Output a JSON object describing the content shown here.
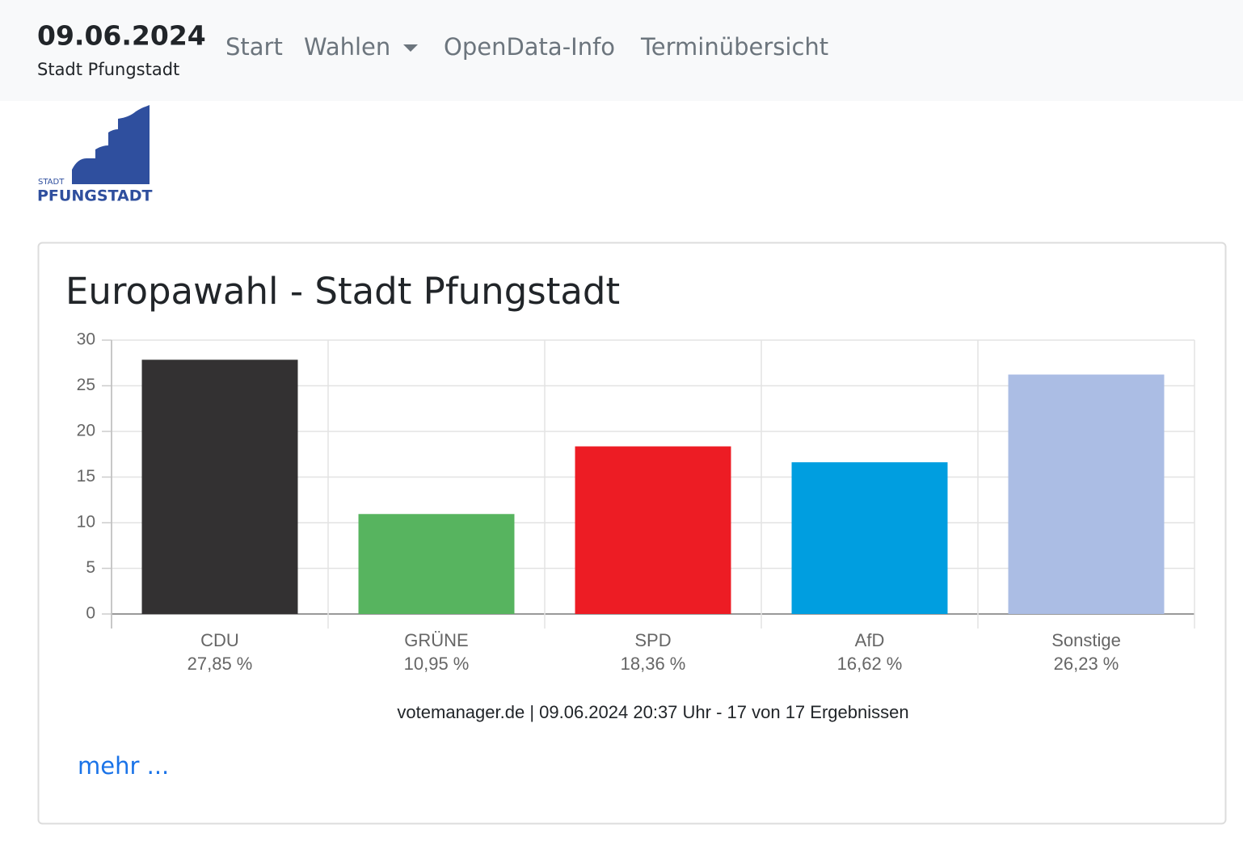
{
  "header": {
    "date": "09.06.2024",
    "subtitle": "Stadt Pfungstadt",
    "nav": [
      "Start",
      "Wahlen",
      "OpenData-Info",
      "Terminübersicht"
    ]
  },
  "logo": {
    "small": "STADT",
    "name": "PFUNGSTADT"
  },
  "chart_data": {
    "type": "bar",
    "title": "Europawahl - Stadt Pfungstadt",
    "categories": [
      "CDU",
      "GRÜNE",
      "SPD",
      "AfD",
      "Sonstige"
    ],
    "values": [
      27.85,
      10.95,
      18.36,
      16.62,
      26.23
    ],
    "value_labels": [
      "27,85 %",
      "10,95 %",
      "18,36 %",
      "16,62 %",
      "26,23 %"
    ],
    "colors": [
      "#333132",
      "#57b45f",
      "#ed1c24",
      "#009ee0",
      "#abbde4"
    ],
    "ylim": [
      0,
      30
    ],
    "yticks": [
      0,
      5,
      10,
      15,
      20,
      25,
      30
    ],
    "grid": true,
    "source": "votemanager.de | 09.06.2024 20:37 Uhr - 17 von 17 Ergebnissen"
  },
  "link": "mehr ..."
}
